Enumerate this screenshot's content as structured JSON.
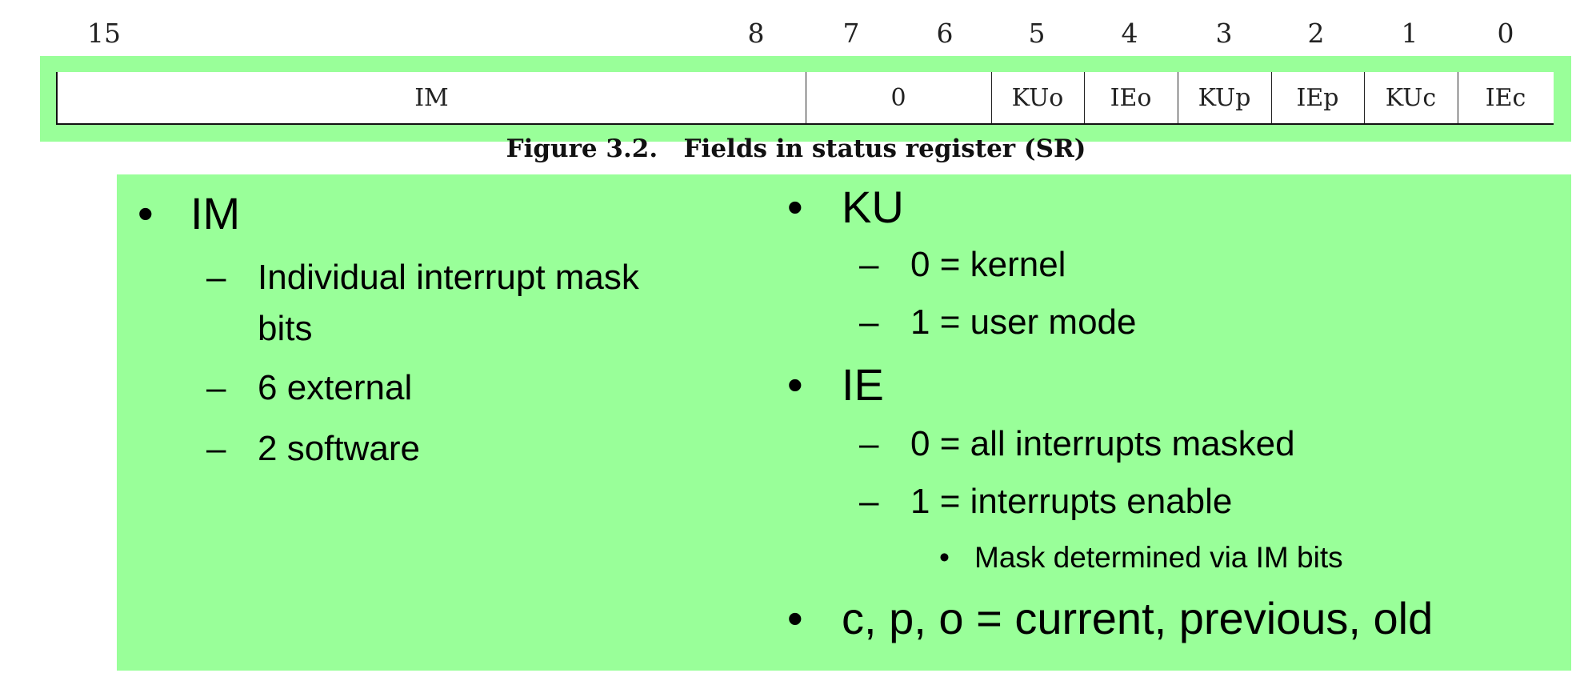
{
  "bit_numbers": [
    "15",
    "8",
    "7",
    "6",
    "5",
    "4",
    "3",
    "2",
    "1",
    "0"
  ],
  "fields": [
    "IM",
    "0",
    "KUo",
    "IEo",
    "KUp",
    "IEp",
    "KUc",
    "IEc"
  ],
  "caption": "Figure 3.2.   Fields in status register (SR)",
  "colors": {
    "highlight": "#99ff99",
    "text": "#000000"
  },
  "left_column": {
    "title": "IM",
    "items": [
      "Individual interrupt mask",
      "bits",
      "6 external",
      "2 software"
    ]
  },
  "right_column": {
    "ku_title": "KU",
    "ku_items": [
      "0 = kernel",
      "1 = user mode"
    ],
    "ie_title": "IE",
    "ie_items": [
      "0 = all interrupts masked",
      "1 = interrupts enable"
    ],
    "ie_sub": "Mask determined via IM bits",
    "cpo": "c, p, o = current, previous, old"
  }
}
